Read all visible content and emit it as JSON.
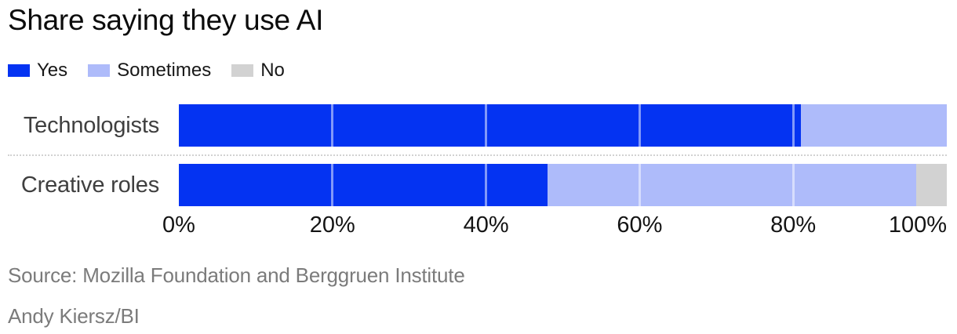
{
  "chart_data": {
    "type": "bar",
    "orientation": "horizontal",
    "stacked": true,
    "title": "Share saying they use AI",
    "categories": [
      "Technologists",
      "Creative roles"
    ],
    "series": [
      {
        "name": "Yes",
        "color": "#0433f2",
        "values": [
          81,
          48
        ]
      },
      {
        "name": "Sometimes",
        "color": "#aebbfa",
        "values": [
          19,
          48
        ]
      },
      {
        "name": "No",
        "color": "#d2d2d2",
        "values": [
          0,
          4
        ]
      }
    ],
    "x_ticks": [
      "0%",
      "20%",
      "40%",
      "60%",
      "80%",
      "100%"
    ],
    "xlim": [
      0,
      100
    ],
    "xlabel": "",
    "ylabel": "",
    "grid": "vertical white lines at 20/40/60/80 over bars",
    "gridline_color": "rgba(255,255,255,0.5)",
    "legend_position": "top-left",
    "background": "#ffffff"
  },
  "footer": {
    "source": "Source: Mozilla Foundation and Berggruen Institute",
    "credit": "Andy Kiersz/BI"
  }
}
